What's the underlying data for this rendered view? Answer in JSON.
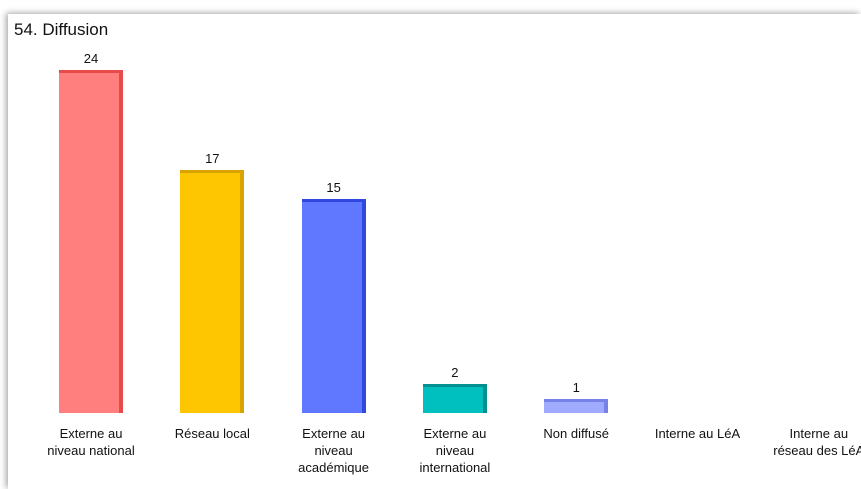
{
  "chart_data": {
    "type": "bar",
    "title": "54. Diffusion",
    "categories": [
      "Externe au niveau national",
      "Réseau local",
      "Externe au niveau académique",
      "Externe au niveau international",
      "Non diffusé",
      "Interne au LéA",
      "Interne au réseau des LéA"
    ],
    "values": [
      24,
      17,
      15,
      2,
      1,
      0,
      0
    ],
    "colors": [
      "#ff7f7f",
      "#fec600",
      "#5f78ff",
      "#00bfbf",
      "#a0aaff",
      "#cccccc",
      "#cccccc"
    ],
    "edge_colors": [
      "#e84a4a",
      "#d9a300",
      "#3048e0",
      "#009090",
      "#7682e8",
      "#999999",
      "#999999"
    ]
  }
}
